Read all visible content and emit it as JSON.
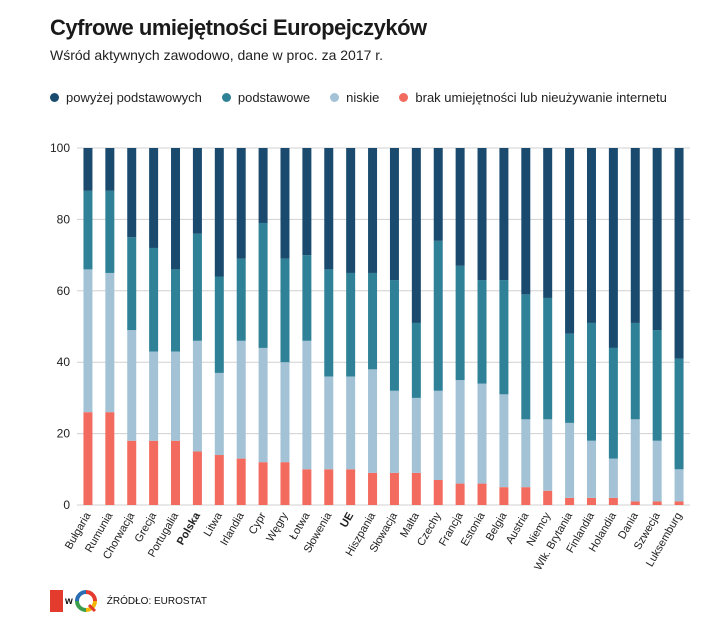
{
  "header": {
    "title": "Cyfrowe umiejętności Europejczyków",
    "subtitle": "Wśród aktywnych zawodowo, dane w proc. za 2017 r."
  },
  "footer": {
    "logo_letter": "w",
    "source": "ŹRÓDŁO: EUROSTAT"
  },
  "colors": {
    "above_basic": "#1a4b6e",
    "basic": "#2e8196",
    "low": "#a3c2d6",
    "none": "#f26b5e"
  },
  "chart_data": {
    "type": "bar",
    "stacked": true,
    "title": "Cyfrowe umiejętności Europejczyków",
    "subtitle": "Wśród aktywnych zawodowo, dane w proc. za 2017 r.",
    "xlabel": "",
    "ylabel": "",
    "ylim": [
      0,
      100
    ],
    "yticks": [
      0,
      20,
      40,
      60,
      80,
      100
    ],
    "grid": true,
    "legend_position": "top-left",
    "bold_categories": [
      "Polska",
      "UE"
    ],
    "categories": [
      "Bułgaria",
      "Rumunia",
      "Chorwacja",
      "Grecja",
      "Portugalia",
      "Polska",
      "Litwa",
      "Irlandia",
      "Cypr",
      "Węgry",
      "Łotwa",
      "Słowenia",
      "UE",
      "Hiszpania",
      "Słowacja",
      "Malta",
      "Czechy",
      "Francja",
      "Estonia",
      "Belgia",
      "Austria",
      "Niemcy",
      "Wlk. Brytania",
      "Finlandia",
      "Holandia",
      "Dania",
      "Szwecja",
      "Luksemburg"
    ],
    "series": [
      {
        "name": "brak umiejętności lub nieużywanie internetu",
        "color_key": "none",
        "values": [
          26,
          26,
          18,
          18,
          18,
          15,
          14,
          13,
          12,
          12,
          10,
          10,
          10,
          9,
          9,
          9,
          7,
          6,
          6,
          5,
          5,
          4,
          2,
          2,
          2,
          1,
          1,
          1
        ]
      },
      {
        "name": "niskie",
        "color_key": "low",
        "values": [
          40,
          39,
          31,
          25,
          25,
          31,
          23,
          33,
          32,
          28,
          36,
          26,
          26,
          29,
          23,
          21,
          25,
          29,
          28,
          26,
          19,
          20,
          21,
          16,
          11,
          23,
          17,
          9
        ]
      },
      {
        "name": "podstawowe",
        "color_key": "basic",
        "values": [
          22,
          23,
          26,
          29,
          23,
          30,
          27,
          23,
          35,
          29,
          24,
          30,
          29,
          27,
          31,
          21,
          42,
          32,
          29,
          32,
          35,
          34,
          25,
          33,
          31,
          27,
          31,
          31
        ]
      },
      {
        "name": "powyżej podstawowych",
        "color_key": "above_basic",
        "values": [
          12,
          12,
          25,
          28,
          34,
          24,
          36,
          31,
          21,
          31,
          30,
          34,
          35,
          35,
          37,
          49,
          26,
          33,
          37,
          37,
          41,
          42,
          52,
          49,
          56,
          49,
          51,
          59
        ]
      }
    ],
    "legend_order": [
      "powyżej podstawowych",
      "podstawowe",
      "niskie",
      "brak umiejętności lub nieużywanie internetu"
    ]
  }
}
